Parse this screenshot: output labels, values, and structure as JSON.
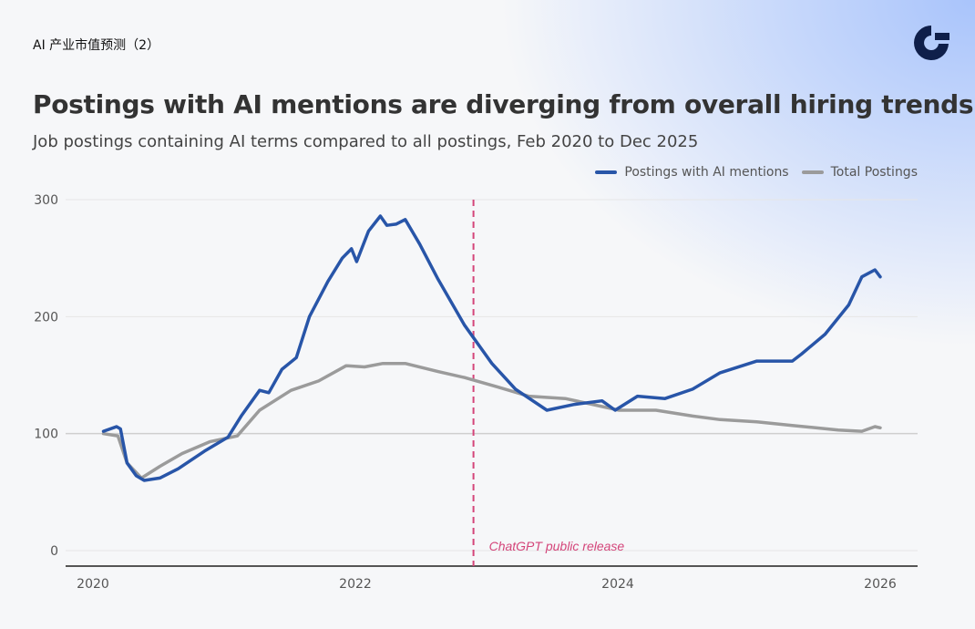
{
  "header": {
    "top_label": "AI 产业市值预测（2）",
    "logo": "brand-logo"
  },
  "colors": {
    "ai": "#2855a8",
    "total": "#9b9b9b",
    "release": "#d4457a"
  },
  "chart_data": {
    "type": "line",
    "title": "Postings with AI mentions are diverging from overall hiring trends",
    "subtitle": "Job postings containing AI terms compared to all postings, Feb 2020 to Dec 2025",
    "xlabel": "",
    "ylabel": "",
    "xlim": [
      2019.8,
      2026.2
    ],
    "ylim": [
      0,
      300
    ],
    "xticks": [
      {
        "v": 2020,
        "label": "2020"
      },
      {
        "v": 2022,
        "label": "2022"
      },
      {
        "v": 2024,
        "label": "2024"
      },
      {
        "v": 2026,
        "label": "2026"
      }
    ],
    "yticks": [
      {
        "v": 0,
        "label": "0"
      },
      {
        "v": 100,
        "label": "100"
      },
      {
        "v": 200,
        "label": "200"
      },
      {
        "v": 300,
        "label": "300"
      }
    ],
    "grid": true,
    "legend_position": "top-right",
    "annotation": {
      "x": 2022.9,
      "label": "ChatGPT public release"
    },
    "series": [
      {
        "name": "Postings with AI mentions",
        "points": [
          [
            2020.08,
            102
          ],
          [
            2020.18,
            106
          ],
          [
            2020.21,
            104
          ],
          [
            2020.26,
            75
          ],
          [
            2020.33,
            64
          ],
          [
            2020.39,
            60
          ],
          [
            2020.51,
            62
          ],
          [
            2020.65,
            70
          ],
          [
            2020.85,
            85
          ],
          [
            2021.03,
            97
          ],
          [
            2021.13,
            115
          ],
          [
            2021.27,
            137
          ],
          [
            2021.34,
            135
          ],
          [
            2021.44,
            155
          ],
          [
            2021.55,
            165
          ],
          [
            2021.65,
            200
          ],
          [
            2021.79,
            230
          ],
          [
            2021.9,
            250
          ],
          [
            2021.97,
            258
          ],
          [
            2022.01,
            247
          ],
          [
            2022.1,
            273
          ],
          [
            2022.19,
            286
          ],
          [
            2022.24,
            278
          ],
          [
            2022.31,
            279
          ],
          [
            2022.38,
            283
          ],
          [
            2022.49,
            262
          ],
          [
            2022.63,
            232
          ],
          [
            2022.83,
            193
          ],
          [
            2023.04,
            160
          ],
          [
            2023.22,
            138
          ],
          [
            2023.46,
            120
          ],
          [
            2023.67,
            125
          ],
          [
            2023.88,
            128
          ],
          [
            2023.98,
            120
          ],
          [
            2024.15,
            132
          ],
          [
            2024.36,
            130
          ],
          [
            2024.57,
            138
          ],
          [
            2024.78,
            152
          ],
          [
            2025.06,
            162
          ],
          [
            2025.33,
            162
          ],
          [
            2025.4,
            168
          ],
          [
            2025.58,
            185
          ],
          [
            2025.76,
            210
          ],
          [
            2025.86,
            234
          ],
          [
            2025.96,
            240
          ],
          [
            2026.0,
            234
          ]
        ]
      },
      {
        "name": "Total Postings",
        "points": [
          [
            2020.08,
            100
          ],
          [
            2020.19,
            98
          ],
          [
            2020.26,
            75
          ],
          [
            2020.37,
            62
          ],
          [
            2020.51,
            72
          ],
          [
            2020.68,
            83
          ],
          [
            2020.89,
            93
          ],
          [
            2021.1,
            98
          ],
          [
            2021.27,
            120
          ],
          [
            2021.51,
            137
          ],
          [
            2021.72,
            145
          ],
          [
            2021.93,
            158
          ],
          [
            2022.07,
            157
          ],
          [
            2022.21,
            160
          ],
          [
            2022.38,
            160
          ],
          [
            2022.63,
            153
          ],
          [
            2022.83,
            148
          ],
          [
            2023.08,
            140
          ],
          [
            2023.32,
            132
          ],
          [
            2023.6,
            130
          ],
          [
            2024.01,
            120
          ],
          [
            2024.29,
            120
          ],
          [
            2024.57,
            115
          ],
          [
            2024.78,
            112
          ],
          [
            2025.06,
            110
          ],
          [
            2025.33,
            107
          ],
          [
            2025.68,
            103
          ],
          [
            2025.86,
            102
          ],
          [
            2025.96,
            106
          ],
          [
            2026.0,
            105
          ]
        ]
      }
    ]
  }
}
